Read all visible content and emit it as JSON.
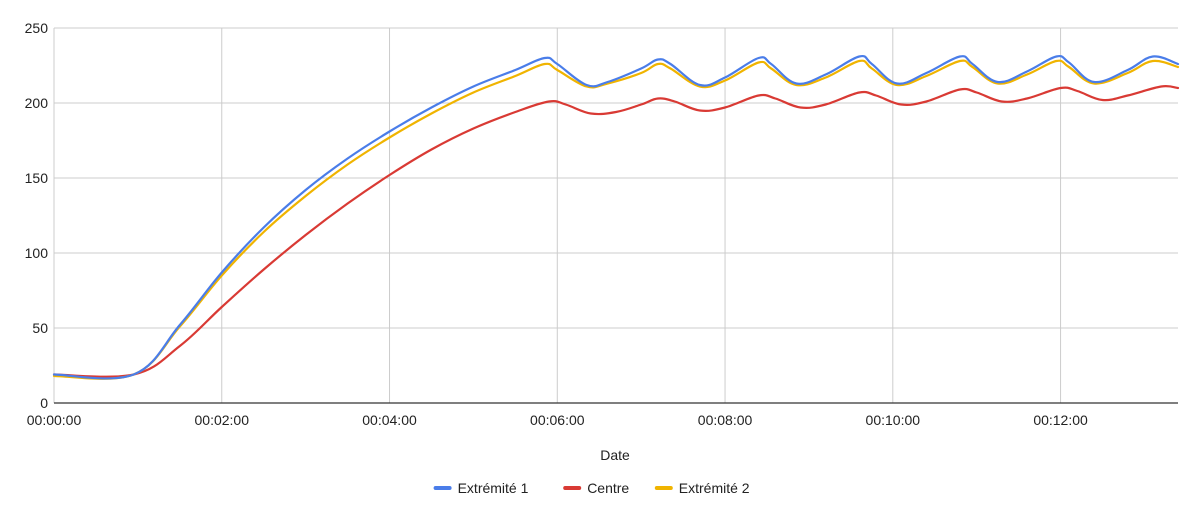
{
  "chart_data": {
    "type": "line",
    "title": "",
    "xlabel": "Date",
    "ylabel": "",
    "x_unit": "minutes",
    "xlim": [
      0,
      13.4
    ],
    "ylim": [
      0,
      250
    ],
    "y_ticks": [
      0,
      50,
      100,
      150,
      200,
      250
    ],
    "x_ticks": [
      {
        "value": 0,
        "label": "00:00:00"
      },
      {
        "value": 2,
        "label": "00:02:00"
      },
      {
        "value": 4,
        "label": "00:04:00"
      },
      {
        "value": 6,
        "label": "00:06:00"
      },
      {
        "value": 8,
        "label": "00:08:00"
      },
      {
        "value": 10,
        "label": "00:10:00"
      },
      {
        "value": 12,
        "label": "00:12:00"
      }
    ],
    "grid": true,
    "legend_position": "bottom",
    "series": [
      {
        "name": "Extrémité 1",
        "color": "#4a7de9",
        "points": [
          [
            0,
            19
          ],
          [
            0.95,
            19
          ],
          [
            1.5,
            52
          ],
          [
            2,
            87
          ],
          [
            2.5,
            117
          ],
          [
            3,
            142
          ],
          [
            3.5,
            163
          ],
          [
            4,
            181
          ],
          [
            4.5,
            197
          ],
          [
            5,
            211
          ],
          [
            5.5,
            222
          ],
          [
            5.85,
            230
          ],
          [
            6.0,
            226
          ],
          [
            6.35,
            212
          ],
          [
            6.6,
            214
          ],
          [
            7.0,
            223
          ],
          [
            7.2,
            229
          ],
          [
            7.35,
            226
          ],
          [
            7.7,
            212
          ],
          [
            8.0,
            217
          ],
          [
            8.4,
            230
          ],
          [
            8.55,
            226
          ],
          [
            8.85,
            213
          ],
          [
            9.2,
            219
          ],
          [
            9.6,
            231
          ],
          [
            9.75,
            226
          ],
          [
            10.05,
            213
          ],
          [
            10.4,
            220
          ],
          [
            10.8,
            231
          ],
          [
            10.95,
            226
          ],
          [
            11.25,
            214
          ],
          [
            11.6,
            221
          ],
          [
            11.95,
            231
          ],
          [
            12.1,
            227
          ],
          [
            12.4,
            214
          ],
          [
            12.8,
            222
          ],
          [
            13.1,
            231
          ],
          [
            13.4,
            226
          ]
        ]
      },
      {
        "name": "Centre",
        "color": "#d93a34",
        "points": [
          [
            0,
            19
          ],
          [
            0.95,
            19
          ],
          [
            1.5,
            38
          ],
          [
            2,
            64
          ],
          [
            2.5,
            89
          ],
          [
            3,
            112
          ],
          [
            3.5,
            133
          ],
          [
            4,
            152
          ],
          [
            4.5,
            169
          ],
          [
            5,
            183
          ],
          [
            5.5,
            194
          ],
          [
            5.9,
            201
          ],
          [
            6.1,
            199
          ],
          [
            6.4,
            193
          ],
          [
            6.7,
            194
          ],
          [
            7.0,
            199
          ],
          [
            7.2,
            203
          ],
          [
            7.4,
            201
          ],
          [
            7.7,
            195
          ],
          [
            8.0,
            197
          ],
          [
            8.4,
            205
          ],
          [
            8.6,
            203
          ],
          [
            8.9,
            197
          ],
          [
            9.2,
            199
          ],
          [
            9.6,
            207
          ],
          [
            9.8,
            205
          ],
          [
            10.1,
            199
          ],
          [
            10.4,
            201
          ],
          [
            10.8,
            209
          ],
          [
            11.0,
            207
          ],
          [
            11.3,
            201
          ],
          [
            11.6,
            203
          ],
          [
            12.0,
            210
          ],
          [
            12.2,
            208
          ],
          [
            12.5,
            202
          ],
          [
            12.8,
            205
          ],
          [
            13.2,
            211
          ],
          [
            13.4,
            210
          ]
        ]
      },
      {
        "name": "Extrémité 2",
        "color": "#f0b400",
        "points": [
          [
            0,
            18
          ],
          [
            0.95,
            19
          ],
          [
            1.5,
            51
          ],
          [
            2,
            85
          ],
          [
            2.5,
            114
          ],
          [
            3,
            138
          ],
          [
            3.5,
            159
          ],
          [
            4,
            177
          ],
          [
            4.5,
            193
          ],
          [
            5,
            207
          ],
          [
            5.5,
            218
          ],
          [
            5.85,
            226
          ],
          [
            6.0,
            222
          ],
          [
            6.35,
            211
          ],
          [
            6.6,
            213
          ],
          [
            7.0,
            220
          ],
          [
            7.2,
            226
          ],
          [
            7.35,
            223
          ],
          [
            7.7,
            211
          ],
          [
            8.0,
            215
          ],
          [
            8.4,
            227
          ],
          [
            8.55,
            223
          ],
          [
            8.85,
            212
          ],
          [
            9.2,
            217
          ],
          [
            9.6,
            228
          ],
          [
            9.75,
            223
          ],
          [
            10.05,
            212
          ],
          [
            10.4,
            218
          ],
          [
            10.8,
            228
          ],
          [
            10.95,
            224
          ],
          [
            11.25,
            213
          ],
          [
            11.6,
            219
          ],
          [
            11.95,
            228
          ],
          [
            12.1,
            224
          ],
          [
            12.4,
            213
          ],
          [
            12.8,
            220
          ],
          [
            13.1,
            228
          ],
          [
            13.4,
            224
          ]
        ]
      }
    ]
  }
}
